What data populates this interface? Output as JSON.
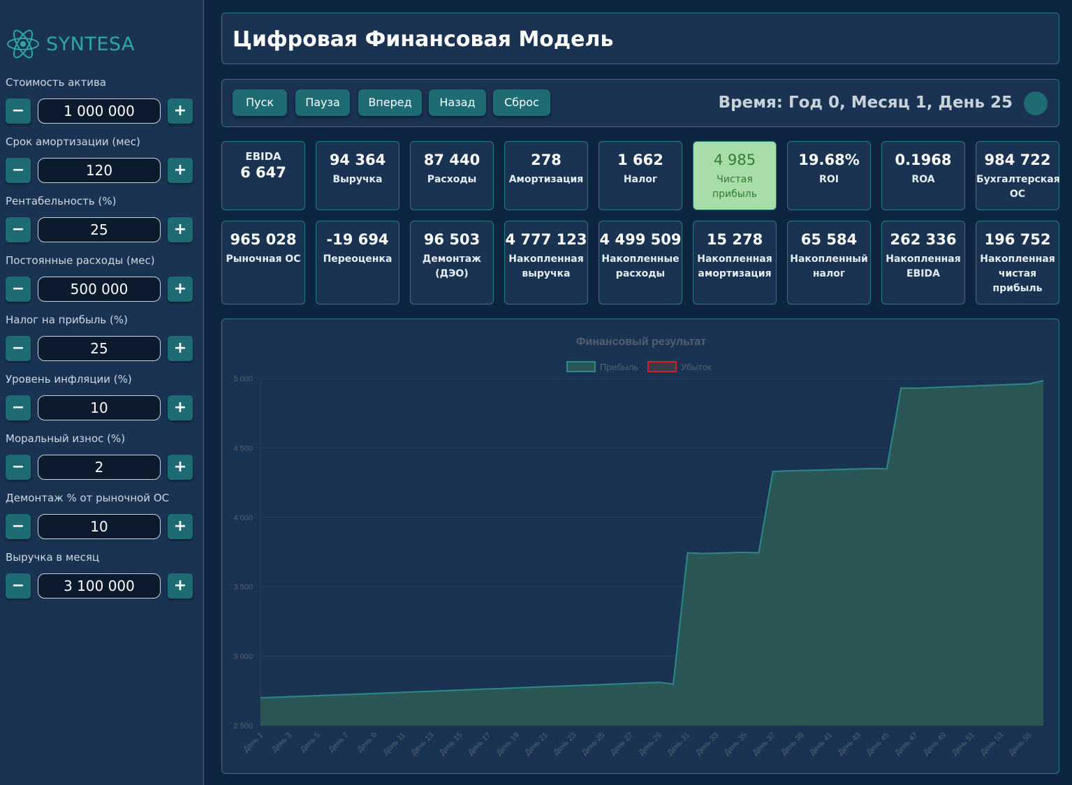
{
  "brand": {
    "name": "SYNTESA",
    "logo_icon": "atom-icon"
  },
  "sidebar": {
    "params": [
      {
        "label": "Стоимость актива",
        "value": "1 000 000"
      },
      {
        "label": "Срок амортизации (мес)",
        "value": "120"
      },
      {
        "label": "Рентабельность (%)",
        "value": "25"
      },
      {
        "label": "Постоянные расходы (мес)",
        "value": "500 000"
      },
      {
        "label": "Налог на прибыль (%)",
        "value": "25"
      },
      {
        "label": "Уровень инфляции (%)",
        "value": "10"
      },
      {
        "label": "Моральный износ (%)",
        "value": "2"
      },
      {
        "label": "Демонтаж % от рыночной ОС",
        "value": "10"
      },
      {
        "label": "Выручка в месяц",
        "value": "3 100 000"
      }
    ],
    "minus_label": "−",
    "plus_label": "+"
  },
  "header": {
    "title": "Цифровая Финансовая Модель"
  },
  "controls": {
    "buttons": [
      "Пуск",
      "Пауза",
      "Вперед",
      "Назад",
      "Сброс"
    ],
    "time": "Время: Год 0, Месяц 1, День 25"
  },
  "cards_row1": [
    {
      "value": "6 647",
      "label": "EBIDA"
    },
    {
      "value": "94 364",
      "label": "Выручка"
    },
    {
      "value": "87 440",
      "label": "Расходы"
    },
    {
      "value": "278",
      "label": "Амортизация"
    },
    {
      "value": "1 662",
      "label": "Налог"
    },
    {
      "value": "4 985",
      "label": "Чистая прибыль"
    },
    {
      "value": "19.68%",
      "label": "ROI"
    },
    {
      "value": "0.1968",
      "label": "ROA"
    },
    {
      "value": "984 722",
      "label": "Бухгалтерская ОС"
    }
  ],
  "cards_row2": [
    {
      "value": "965 028",
      "label": "Рыночная ОС"
    },
    {
      "value": "-19 694",
      "label": "Переоценка"
    },
    {
      "value": "96 503",
      "label": "Демонтаж (ДЭО)"
    },
    {
      "value": "4 777 123",
      "label": "Накопленная выручка"
    },
    {
      "value": "4 499 509",
      "label": "Накопленные расходы"
    },
    {
      "value": "15 278",
      "label": "Накопленная амортизация"
    },
    {
      "value": "65 584",
      "label": "Накопленный налог"
    },
    {
      "value": "262 336",
      "label": "Накопленная EBIDA"
    },
    {
      "value": "196 752",
      "label": "Накопленная чистая прибыль"
    }
  ],
  "colors": {
    "accent": "#1f6b73",
    "profit_fill": "#2a5656",
    "profit_line": "#2a8a8a",
    "loss": "#d0202a",
    "highlight_card": "#a8dca8"
  },
  "chart_data": {
    "type": "area",
    "title": "Финансовый результат",
    "legend": [
      "Прибыль",
      "Убыток"
    ],
    "legend_placement": "top",
    "ylim": [
      2500,
      5000
    ],
    "yticks": [
      "5 000",
      "4 500",
      "4 000",
      "3 500",
      "3 000",
      "2 500"
    ],
    "xticks": [
      "День 1",
      "День 3",
      "День 5",
      "День 7",
      "День 9",
      "День 11",
      "День 13",
      "День 15",
      "День 17",
      "День 19",
      "День 21",
      "День 23",
      "День 25",
      "День 27",
      "День 29",
      "День 31",
      "День 33",
      "День 35",
      "День 37",
      "День 39",
      "День 41",
      "День 43",
      "День 45",
      "День 47",
      "День 49",
      "День 51",
      "День 53",
      "День 55"
    ],
    "series": [
      {
        "name": "Прибыль",
        "x": [
          1,
          2,
          3,
          4,
          5,
          6,
          7,
          8,
          9,
          10,
          11,
          12,
          13,
          14,
          15,
          16,
          17,
          18,
          19,
          20,
          21,
          22,
          23,
          24,
          25,
          26,
          27,
          28,
          29,
          30,
          31,
          32,
          33,
          34,
          35,
          36,
          37,
          38,
          39,
          40,
          41,
          42,
          43,
          44,
          45,
          46,
          47,
          48,
          49,
          50,
          51,
          52,
          53,
          54,
          55,
          56
        ],
        "values": [
          2700,
          2704,
          2708,
          2712,
          2716,
          2720,
          2724,
          2728,
          2732,
          2736,
          2740,
          2744,
          2748,
          2752,
          2756,
          2760,
          2764,
          2768,
          2772,
          2776,
          2780,
          2784,
          2788,
          2792,
          2796,
          2800,
          2804,
          2808,
          2812,
          2800,
          3745,
          3740,
          3742,
          3745,
          3748,
          3745,
          4330,
          4335,
          4338,
          4340,
          4343,
          4346,
          4349,
          4352,
          4350,
          4932,
          4930,
          4934,
          4938,
          4942,
          4946,
          4950,
          4954,
          4958,
          4962,
          4985
        ]
      }
    ]
  }
}
